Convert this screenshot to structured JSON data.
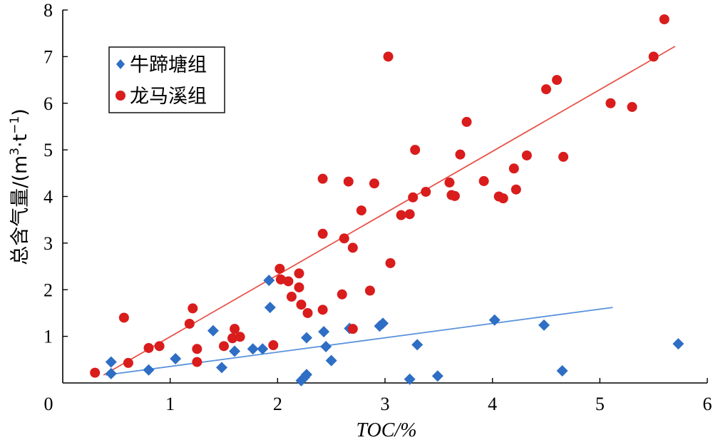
{
  "chart_data": {
    "type": "scatter",
    "xlabel": "TOC/%",
    "ylabel_main": "总含气量/(m",
    "ylabel_sup1": "3",
    "ylabel_mid": "·t",
    "ylabel_sup2": "−1",
    "ylabel_end": ")",
    "xlim": [
      0,
      6
    ],
    "ylim": [
      0,
      8
    ],
    "xticks": [
      0,
      1,
      2,
      3,
      4,
      5,
      6
    ],
    "yticks": [
      1,
      2,
      3,
      4,
      5,
      6,
      7,
      8
    ],
    "origin_label": "0",
    "legend_position": "top-left",
    "series": [
      {
        "name": "牛蹄塘组",
        "marker": "diamond",
        "color": "#2e6ec4",
        "trend_color": "#5b93dc",
        "trendline": {
          "x1": 0.4,
          "y1": 0.17,
          "x2": 5.12,
          "y2": 1.62
        },
        "points": [
          [
            0.45,
            0.45
          ],
          [
            0.45,
            0.2
          ],
          [
            0.8,
            0.28
          ],
          [
            1.05,
            0.52
          ],
          [
            1.4,
            1.12
          ],
          [
            1.48,
            0.33
          ],
          [
            1.6,
            0.68
          ],
          [
            1.77,
            0.73
          ],
          [
            1.86,
            0.73
          ],
          [
            1.92,
            2.2
          ],
          [
            1.93,
            1.62
          ],
          [
            2.22,
            0.05
          ],
          [
            2.25,
            0.12
          ],
          [
            2.27,
            0.18
          ],
          [
            2.27,
            0.97
          ],
          [
            2.43,
            1.1
          ],
          [
            2.45,
            0.78
          ],
          [
            2.5,
            0.48
          ],
          [
            2.67,
            1.17
          ],
          [
            2.95,
            1.22
          ],
          [
            2.98,
            1.28
          ],
          [
            3.23,
            0.08
          ],
          [
            3.3,
            0.82
          ],
          [
            3.49,
            0.15
          ],
          [
            4.02,
            1.35
          ],
          [
            4.48,
            1.24
          ],
          [
            4.65,
            0.26
          ],
          [
            5.73,
            0.84
          ]
        ]
      },
      {
        "name": "龙马溪组",
        "marker": "circle",
        "color": "#d91c1c",
        "trend_color": "#e8544a",
        "trendline": {
          "x1": 0.38,
          "y1": 0.17,
          "x2": 5.7,
          "y2": 7.22
        },
        "points": [
          [
            0.3,
            0.22
          ],
          [
            0.57,
            1.4
          ],
          [
            0.61,
            0.43
          ],
          [
            0.8,
            0.75
          ],
          [
            0.9,
            0.79
          ],
          [
            1.18,
            1.27
          ],
          [
            1.21,
            1.6
          ],
          [
            1.25,
            0.45
          ],
          [
            1.25,
            0.73
          ],
          [
            1.5,
            0.79
          ],
          [
            1.58,
            0.96
          ],
          [
            1.6,
            1.16
          ],
          [
            1.65,
            0.99
          ],
          [
            1.96,
            0.81
          ],
          [
            2.02,
            2.45
          ],
          [
            2.03,
            2.22
          ],
          [
            2.1,
            2.18
          ],
          [
            2.13,
            1.85
          ],
          [
            2.2,
            2.35
          ],
          [
            2.2,
            2.05
          ],
          [
            2.22,
            1.68
          ],
          [
            2.28,
            1.5
          ],
          [
            2.42,
            1.57
          ],
          [
            2.42,
            3.2
          ],
          [
            2.42,
            4.38
          ],
          [
            2.6,
            1.9
          ],
          [
            2.62,
            3.1
          ],
          [
            2.66,
            4.32
          ],
          [
            2.7,
            2.9
          ],
          [
            2.7,
            1.16
          ],
          [
            2.78,
            3.7
          ],
          [
            2.86,
            1.98
          ],
          [
            2.9,
            4.28
          ],
          [
            3.03,
            7.0
          ],
          [
            3.05,
            2.57
          ],
          [
            3.15,
            3.6
          ],
          [
            3.23,
            3.62
          ],
          [
            3.26,
            3.98
          ],
          [
            3.28,
            5.0
          ],
          [
            3.38,
            4.1
          ],
          [
            3.6,
            4.3
          ],
          [
            3.62,
            4.03
          ],
          [
            3.65,
            4.01
          ],
          [
            3.7,
            4.9
          ],
          [
            3.76,
            5.6
          ],
          [
            3.92,
            4.33
          ],
          [
            4.06,
            4.0
          ],
          [
            4.1,
            3.96
          ],
          [
            4.2,
            4.6
          ],
          [
            4.22,
            4.15
          ],
          [
            4.32,
            4.88
          ],
          [
            4.5,
            6.3
          ],
          [
            4.6,
            6.5
          ],
          [
            4.66,
            4.85
          ],
          [
            5.1,
            6.0
          ],
          [
            5.3,
            5.92
          ],
          [
            5.5,
            7.0
          ],
          [
            5.6,
            7.8
          ]
        ]
      }
    ]
  }
}
